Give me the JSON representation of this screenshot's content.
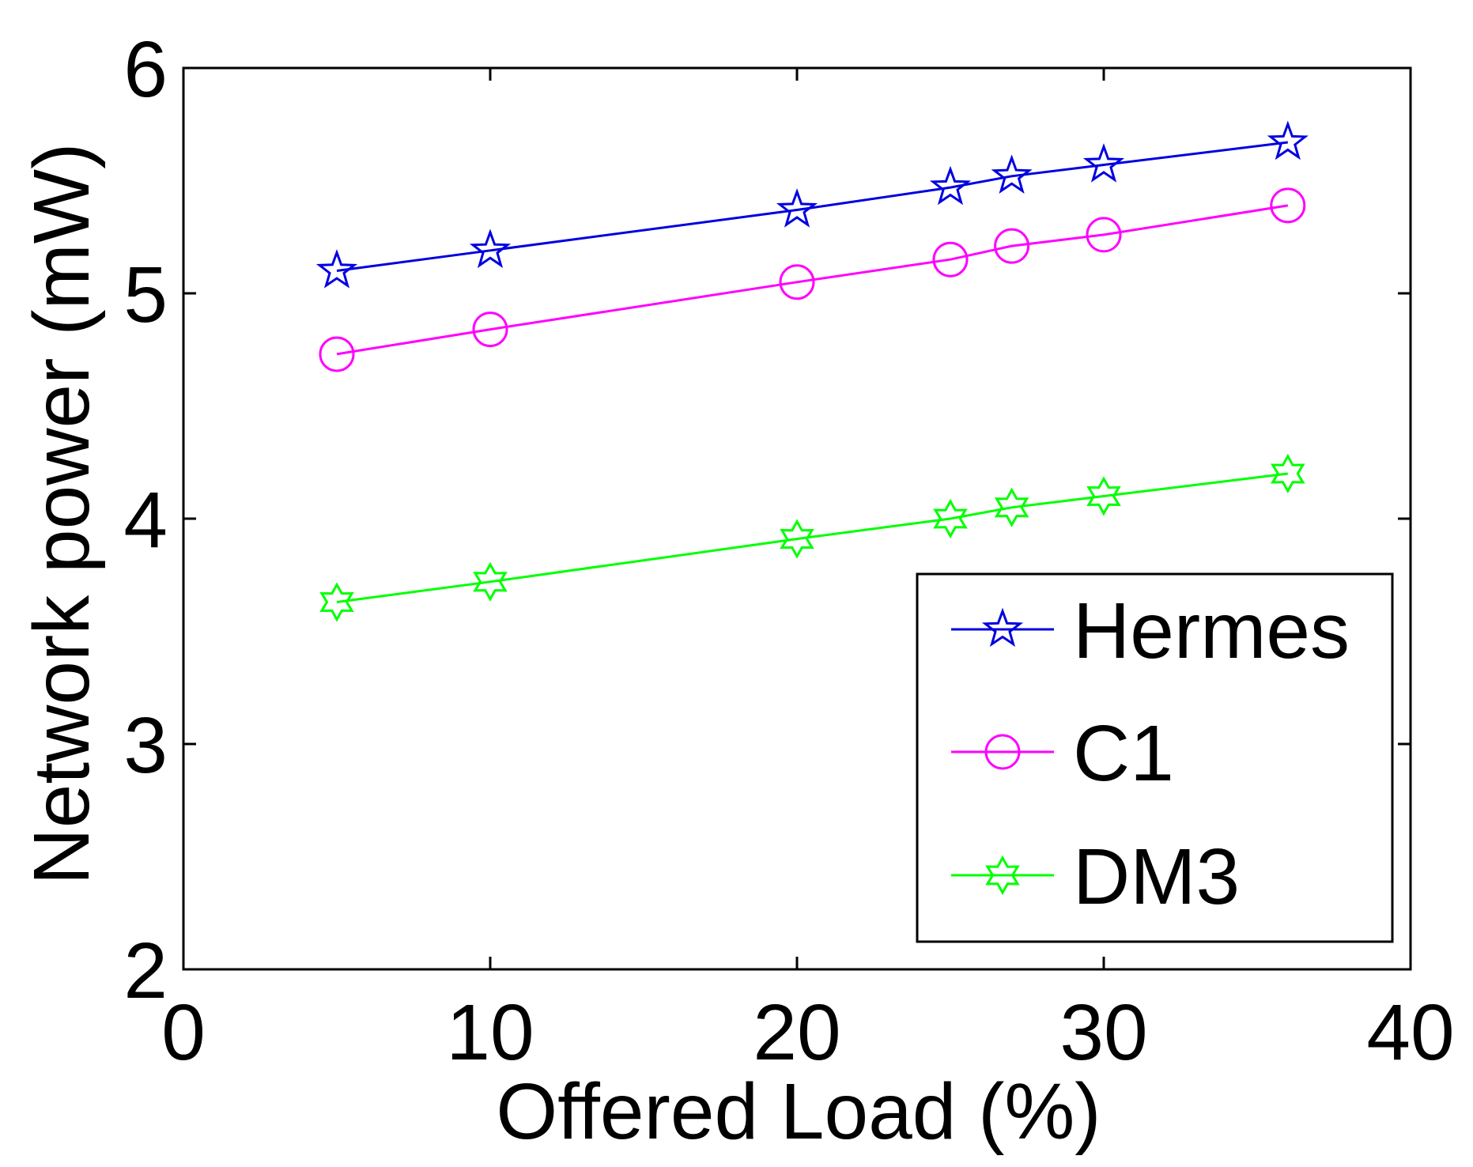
{
  "chart_data": {
    "type": "line",
    "title": "",
    "xlabel": "Offered Load (%)",
    "ylabel": "Network power (mW)",
    "xlim": [
      0,
      40
    ],
    "ylim": [
      2,
      6
    ],
    "xticks": [
      0,
      10,
      20,
      30,
      40
    ],
    "yticks": [
      2,
      3,
      4,
      5,
      6
    ],
    "x": [
      5,
      10,
      20,
      25,
      27,
      30,
      36
    ],
    "grid": false,
    "legend_position": "bottom-right",
    "series": [
      {
        "name": "Hermes",
        "color": "#0000e0",
        "marker": "pentagram",
        "values": [
          5.1,
          5.19,
          5.37,
          5.47,
          5.52,
          5.57,
          5.67
        ]
      },
      {
        "name": "C1",
        "color": "#ff00ff",
        "marker": "circle",
        "values": [
          4.73,
          4.84,
          5.05,
          5.15,
          5.21,
          5.26,
          5.39
        ]
      },
      {
        "name": "DM3",
        "color": "#00ff00",
        "marker": "hexagram",
        "values": [
          3.63,
          3.72,
          3.91,
          4.0,
          4.05,
          4.1,
          4.2
        ]
      }
    ]
  }
}
